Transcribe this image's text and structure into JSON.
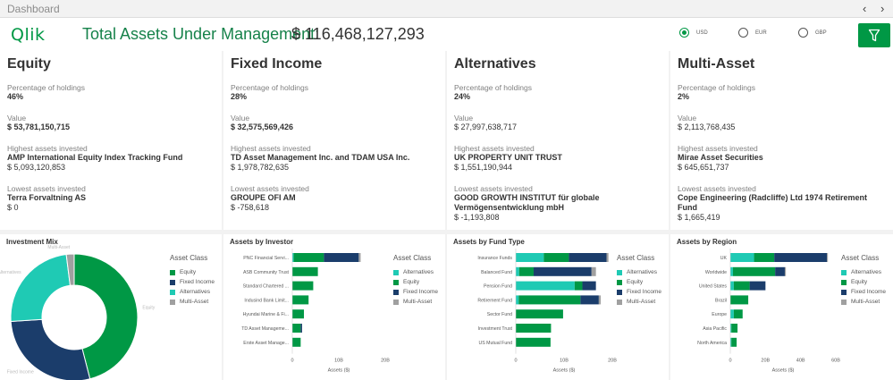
{
  "topbar": {
    "title": "Dashboard",
    "prev": "‹",
    "next": "›"
  },
  "header": {
    "logo": "Qlik",
    "tam_label": "Total Assets Under Management:",
    "tam_value": "$ 116,468,127,293",
    "currencies": [
      {
        "label": "USD",
        "selected": true
      },
      {
        "label": "EUR",
        "selected": false
      },
      {
        "label": "GBP",
        "selected": false
      }
    ],
    "filter_icon": "filter-icon"
  },
  "cards": [
    {
      "title": "Equity",
      "pct_label": "Percentage of holdings",
      "pct": "46%",
      "value_label": "Value",
      "value": "$ 53,781,150,715",
      "highest_label": "Highest assets invested",
      "highest_name": "AMP International Equity Index Tracking Fund",
      "highest_value": "$ 5,093,120,853",
      "lowest_label": "Lowest assets invested",
      "lowest_name": "Terra Forvaltning AS",
      "lowest_value": "$ 0"
    },
    {
      "title": "Fixed Income",
      "pct_label": "Percentage of holdings",
      "pct": "28%",
      "value_label": "Value",
      "value": "$ 32,575,569,426",
      "highest_label": "Highest assets invested",
      "highest_name": "TD Asset Management Inc. and TDAM USA Inc.",
      "highest_value": "$ 1,978,782,635",
      "lowest_label": "Lowest assets invested",
      "lowest_name": "GROUPE OFI AM",
      "lowest_value": "$ -758,618"
    },
    {
      "title": "Alternatives",
      "pct_label": "Percentage of holdings",
      "pct": "24%",
      "value_label": "Value",
      "value": "$ 27,997,638,717",
      "highest_label": "Highest assets invested",
      "highest_name": "UK PROPERTY UNIT TRUST",
      "highest_value": "$ 1,551,190,944",
      "lowest_label": "Lowest assets invested",
      "lowest_name": "GOOD GROWTH INSTITUT für globale Vermögensentwicklung mbH",
      "lowest_value": "$ -1,193,808"
    },
    {
      "title": "Multi-Asset",
      "pct_label": "Percentage of holdings",
      "pct": "2%",
      "value_label": "Value",
      "value": "$ 2,113,768,435",
      "highest_label": "Highest assets invested",
      "highest_name": "Mirae Asset Securities",
      "highest_value": "$ 645,651,737",
      "lowest_label": "Lowest assets invested",
      "lowest_name": "Cope Engineering (Radcliffe) Ltd 1974 Retirement Fund",
      "lowest_value": "$ 1,665,419"
    }
  ],
  "colors": {
    "Equity": "#009845",
    "Fixed Income": "#1b3d6b",
    "Alternatives": "#1fcab4",
    "Multi-Asset": "#a0a0a0"
  },
  "legend_title": "Asset Class",
  "chart_data": [
    {
      "type": "pie",
      "title": "Investment Mix",
      "donut": true,
      "categories": [
        "Equity",
        "Fixed Income",
        "Alternatives",
        "Multi-Asset"
      ],
      "values": [
        46,
        28,
        24,
        2
      ],
      "legend": [
        "Equity",
        "Fixed Income",
        "Alternatives",
        "Multi-Asset"
      ],
      "legend_title": "Asset Class",
      "slice_labels": [
        "Equity",
        "Fixed Income",
        "Alternatives",
        "Multi-Asset"
      ]
    },
    {
      "type": "bar",
      "orientation": "horizontal",
      "stacked": true,
      "title": "Assets by Investor",
      "categories": [
        "PNC Financial Servi...",
        "ASB Community Trust",
        "Standard Chartered ...",
        "Indusind Bank Limit...",
        "Hyundai Marine & Fi...",
        "TD Asset Manageme...",
        "Erste Asset Manage..."
      ],
      "series": [
        {
          "name": "Alternatives",
          "values": [
            0.3,
            0,
            0,
            0,
            0,
            0,
            0
          ]
        },
        {
          "name": "Equity",
          "values": [
            6.5,
            5.5,
            4.5,
            3.5,
            2.5,
            1.8,
            1.8
          ]
        },
        {
          "name": "Fixed Income",
          "values": [
            7.5,
            0,
            0,
            0,
            0,
            0.3,
            0
          ]
        },
        {
          "name": "Multi-Asset",
          "values": [
            0.4,
            0,
            0,
            0,
            0,
            0,
            0
          ]
        }
      ],
      "xlabel": "Assets ($)",
      "xticks": [
        "0",
        "10B",
        "20B"
      ],
      "xlim": [
        0,
        20
      ],
      "legend": [
        "Alternatives",
        "Equity",
        "Fixed Income",
        "Multi-Asset"
      ]
    },
    {
      "type": "bar",
      "orientation": "horizontal",
      "stacked": true,
      "title": "Assets by Fund Type",
      "categories": [
        "Insurance Funds",
        "Balanced Fund",
        "Pension Fund",
        "Retirement Fund",
        "Sector Fund",
        "Investment Trust",
        "US Mutual Fund"
      ],
      "series": [
        {
          "name": "Alternatives",
          "values": [
            5.8,
            0.7,
            12.2,
            0.6,
            0,
            0,
            0
          ]
        },
        {
          "name": "Equity",
          "values": [
            5.2,
            3.0,
            1.6,
            12.8,
            9.8,
            7.3,
            7.2
          ]
        },
        {
          "name": "Fixed Income",
          "values": [
            7.8,
            12.0,
            2.8,
            3.8,
            0,
            0,
            0
          ]
        },
        {
          "name": "Multi-Asset",
          "values": [
            0.4,
            0.9,
            0,
            0.4,
            0,
            0,
            0
          ]
        }
      ],
      "xlabel": "Assets ($)",
      "xticks": [
        "0",
        "10B",
        "20B"
      ],
      "xlim": [
        0,
        20
      ],
      "legend": [
        "Alternatives",
        "Equity",
        "Fixed Income",
        "Multi-Asset"
      ]
    },
    {
      "type": "bar",
      "orientation": "horizontal",
      "stacked": true,
      "title": "Assets by Region",
      "categories": [
        "UK",
        "Worldwide",
        "United States",
        "Brazil",
        "Europe",
        "Asia Pacific",
        "North America"
      ],
      "series": [
        {
          "name": "Alternatives",
          "values": [
            13.5,
            1.5,
            2.0,
            0,
            2.0,
            0.6,
            0.6
          ]
        },
        {
          "name": "Equity",
          "values": [
            11.5,
            24.0,
            9.0,
            10.2,
            5.0,
            3.5,
            3.0
          ]
        },
        {
          "name": "Fixed Income",
          "values": [
            30.0,
            5.5,
            9.0,
            0,
            0,
            0,
            0
          ]
        },
        {
          "name": "Multi-Asset",
          "values": [
            0.5,
            0.6,
            0,
            0,
            0,
            0,
            0
          ]
        }
      ],
      "xlabel": "Assets ($)",
      "xticks": [
        "0",
        "20B",
        "40B",
        "60B"
      ],
      "xlim": [
        0,
        60
      ],
      "legend": [
        "Alternatives",
        "Equity",
        "Fixed Income",
        "Multi-Asset"
      ]
    }
  ]
}
